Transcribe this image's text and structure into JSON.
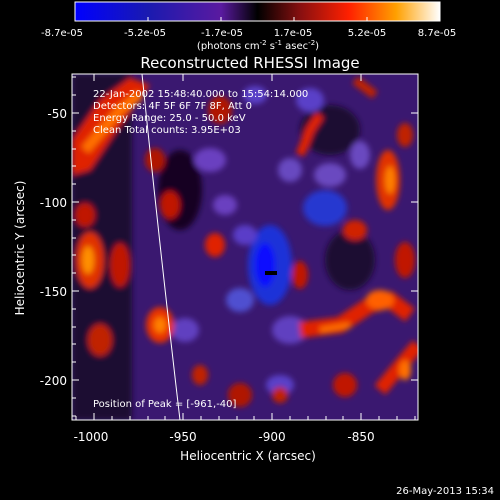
{
  "colorbar": {
    "ticks": [
      "-8.7e-05",
      "-5.2e-05",
      "-1.7e-05",
      "1.7e-05",
      "5.2e-05",
      "8.7e-05"
    ],
    "units_main": "(photons cm",
    "units_exp1": "-2",
    "units_s": " s",
    "units_exp2": "-1",
    "units_asec": " asec",
    "units_exp3": "-2",
    "units_close": ")"
  },
  "plot": {
    "title": "Reconstructed RHESSI Image",
    "info_lines": [
      "22-Jan-2002 15:48:40.000 to 15:54:14.000",
      "Detectors: 4F 5F 6F 7F 8F, Att 0",
      "Energy Range: 25.0 - 50.0 keV",
      "Clean    Total counts: 3.95E+03"
    ],
    "peak_text": "Position of Peak = [-961,-40]"
  },
  "axes": {
    "xlabel": "Heliocentric X (arcsec)",
    "ylabel": "Heliocentric Y (arcsec)",
    "xticks": [
      "-1000",
      "-950",
      "-900",
      "-850"
    ],
    "yticks": [
      "-50",
      "-100",
      "-150",
      "-200"
    ]
  },
  "footer": {
    "timestamp": "26-May-2013 15:34"
  },
  "chart_data": {
    "type": "heatmap",
    "title": "Reconstructed RHESSI Image",
    "xlabel": "Heliocentric X (arcsec)",
    "ylabel": "Heliocentric Y (arcsec)",
    "xlim": [
      -1012,
      -818
    ],
    "ylim": [
      -222,
      -28
    ],
    "colorbar_range": [
      -8.7e-05,
      8.7e-05
    ],
    "peak": [
      -961,
      -40
    ]
  }
}
